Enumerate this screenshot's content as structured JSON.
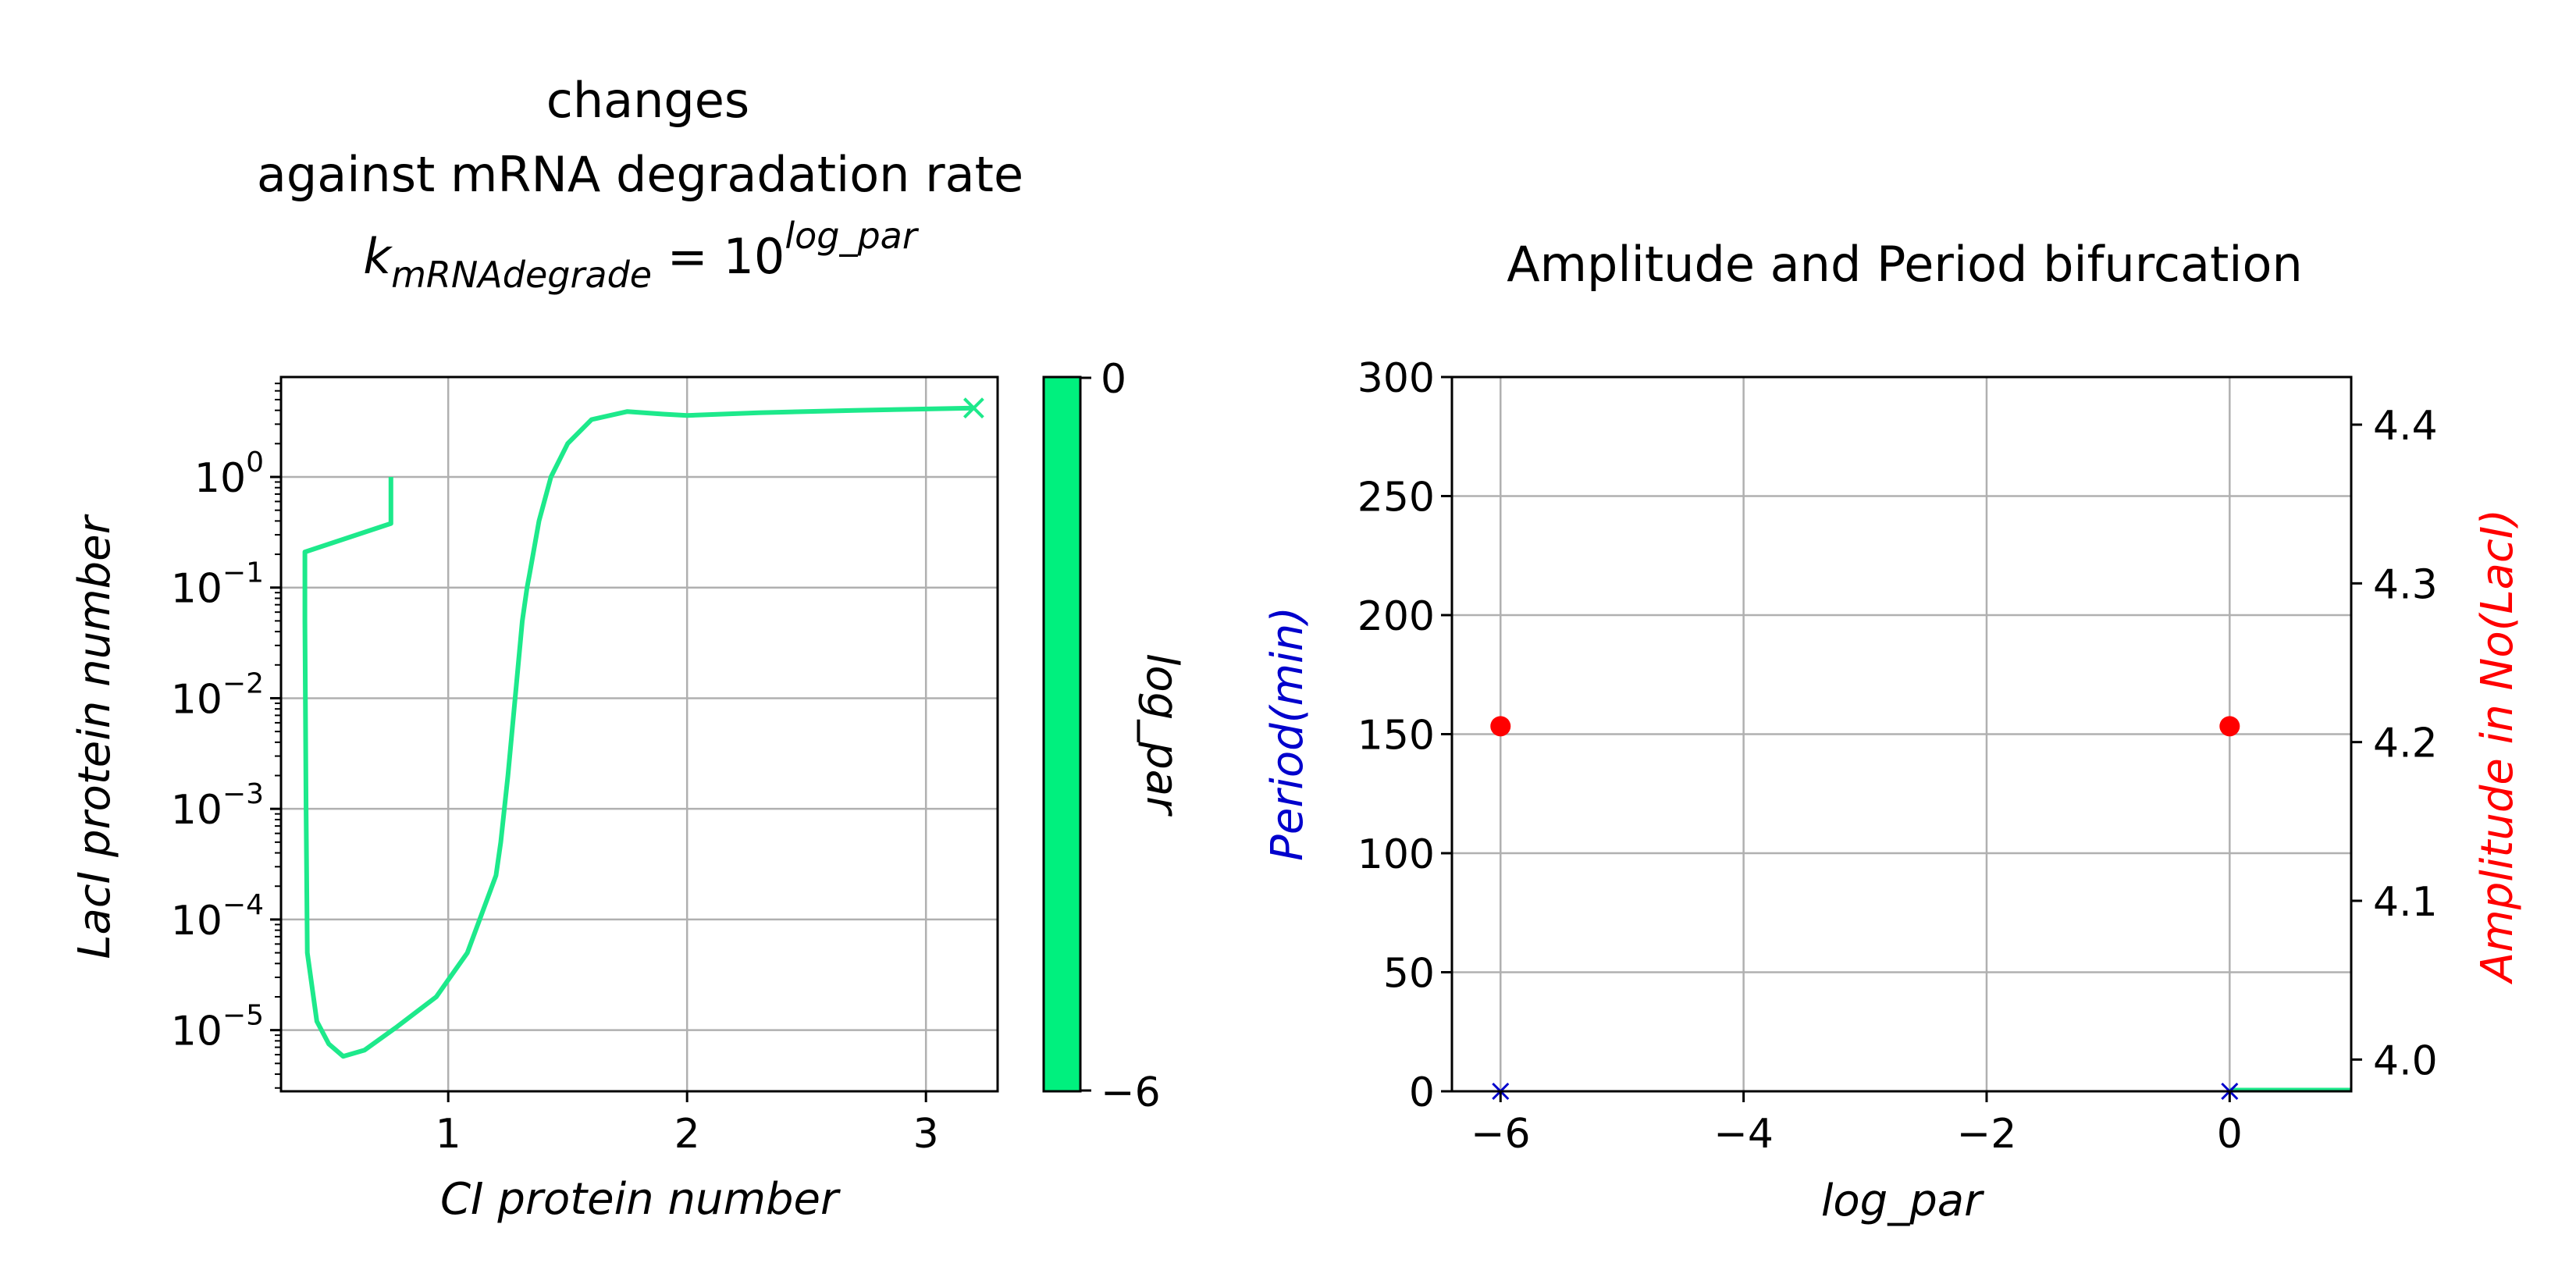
{
  "chart_data": [
    {
      "type": "line",
      "title_lines": [
        "changes",
        "against mRNA degradation rate"
      ],
      "title_formula": {
        "base": "k",
        "subscript": "mRNAdegrade",
        "equals": " = 10",
        "superscript": "log_par"
      },
      "xlabel": "CI protein number",
      "ylabel": "LacI protein number",
      "xscale": "linear",
      "yscale": "log",
      "xlim": [
        0.3,
        3.3
      ],
      "ylim": [
        2.8e-06,
        8
      ],
      "xticks": [
        1,
        2,
        3
      ],
      "yticks": [
        {
          "value": 1e-05,
          "exp": "−5"
        },
        {
          "value": 0.0001,
          "exp": "−4"
        },
        {
          "value": 0.001,
          "exp": "−3"
        },
        {
          "value": 0.01,
          "exp": "−2"
        },
        {
          "value": 0.1,
          "exp": "−1"
        },
        {
          "value": 1,
          "exp": "0"
        }
      ],
      "ytick_base": "10",
      "grid": true,
      "series": [
        {
          "color": "#1de98b",
          "x": [
            0.76,
            0.76,
            0.76,
            0.4,
            0.4,
            0.405,
            0.41,
            0.45,
            0.5,
            0.56,
            0.65,
            0.78,
            0.95,
            1.08,
            1.2,
            1.22,
            1.25,
            1.28,
            1.31,
            1.33,
            1.34,
            1.38,
            1.43,
            1.5,
            1.6,
            1.75,
            1.9,
            2.0,
            2.3,
            2.7,
            3.2
          ],
          "y": [
            1.0,
            0.6,
            0.38,
            0.21,
            0.05,
            0.001,
            5e-05,
            1.2e-05,
            7.5e-06,
            5.8e-06,
            6.6e-06,
            1.05e-05,
            2e-05,
            5e-05,
            0.00025,
            0.0005,
            0.002,
            0.01,
            0.05,
            0.1,
            0.13,
            0.4,
            1.0,
            2.0,
            3.3,
            3.9,
            3.7,
            3.6,
            3.8,
            4.0,
            4.2
          ]
        }
      ],
      "end_marker": {
        "x": 3.2,
        "y": 4.2,
        "shape": "x"
      },
      "colorbar": {
        "label": "log_par",
        "min": -6,
        "max": 0,
        "ticks": [
          "0",
          "−6"
        ],
        "color": "#00f07e"
      }
    },
    {
      "type": "scatter",
      "title": "Amplitude and Period bifurcation",
      "xlabel": "log_par",
      "ylabel_left": "Period(min)",
      "ylabel_right": "Amplitude in No(LacI)",
      "xlim": [
        -6.4,
        1.0
      ],
      "ylim_left": [
        0,
        300
      ],
      "ylim_right": [
        3.98,
        4.43
      ],
      "xticks": [
        {
          "value": -6,
          "label": "−6"
        },
        {
          "value": -4,
          "label": "−4"
        },
        {
          "value": -2,
          "label": "−2"
        },
        {
          "value": 0,
          "label": "0"
        }
      ],
      "yticks_left": [
        "0",
        "50",
        "100",
        "150",
        "200",
        "250",
        "300"
      ],
      "yticks_right": [
        "4.0",
        "4.1",
        "4.2",
        "4.3",
        "4.4"
      ],
      "grid": true,
      "series": [
        {
          "axis": "left",
          "marker": "x",
          "color": "#0000cc",
          "x": [
            -6,
            0
          ],
          "y": [
            0,
            0
          ]
        },
        {
          "axis": "right",
          "marker": "circle",
          "color": "#ff0000",
          "x": [
            -6,
            0
          ],
          "y": [
            4.21,
            4.21
          ]
        }
      ],
      "colors": {
        "left_axis": "#0000cc",
        "right_axis": "#ff0000",
        "segment": "#1de98b"
      }
    }
  ]
}
